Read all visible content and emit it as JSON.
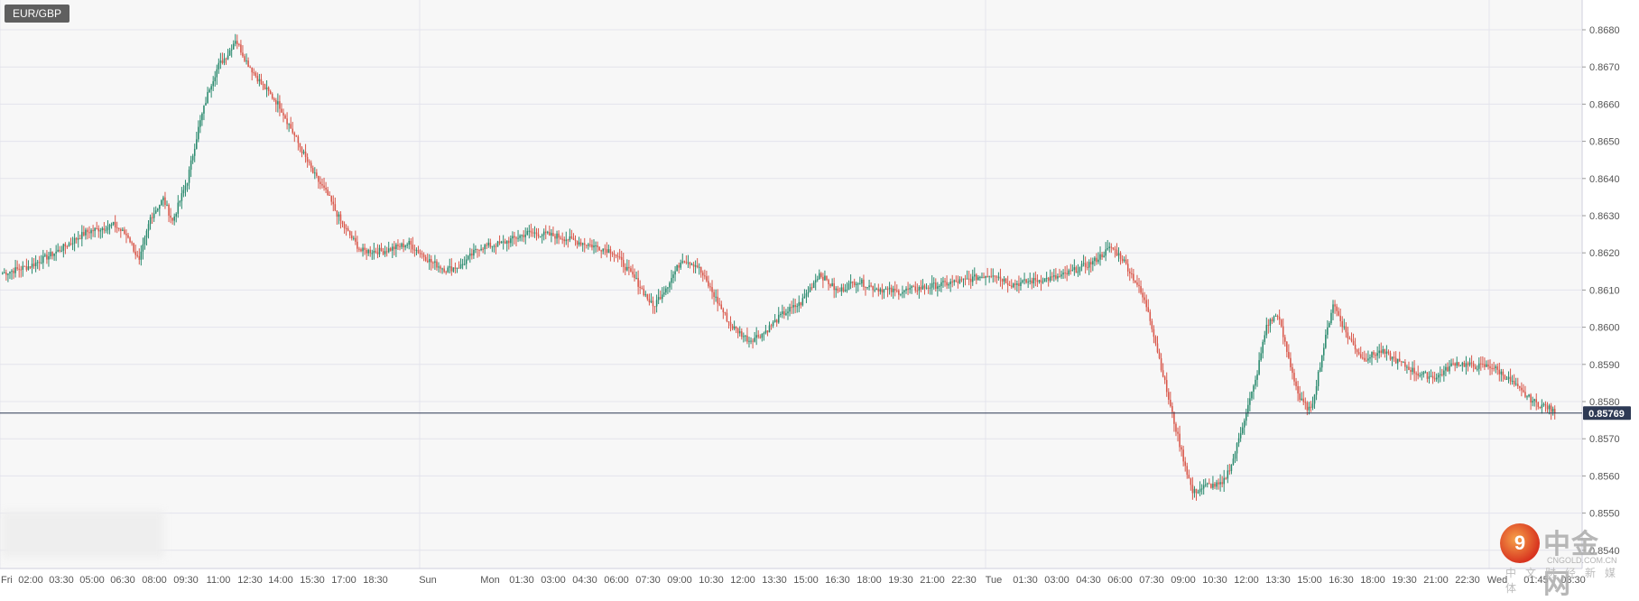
{
  "symbol": "EUR/GBP",
  "colors": {
    "up": "#2a8a6e",
    "down": "#d9574a",
    "grid": "#e4e4ec",
    "price_line": "#2e3a55",
    "badge": "#2e3a55"
  },
  "logo": {
    "mark": "9",
    "name": "中金网",
    "url": "CNGOLD.COM.CN",
    "sub": "中文财经新媒体"
  },
  "chart_data": {
    "type": "candlestick",
    "symbol": "EUR/GBP",
    "current_price": 0.85769,
    "current_price_label": "0.85769",
    "y_ticks": [
      "0.8680",
      "0.8670",
      "0.8660",
      "0.8650",
      "0.8640",
      "0.8630",
      "0.8620",
      "0.8610",
      "0.8600",
      "0.8590",
      "0.8580",
      "0.8570",
      "0.8560",
      "0.8550",
      "0.8540"
    ],
    "ylim": [
      0.8538,
      0.8686
    ],
    "x_labels": [
      "Fri",
      "02:00",
      "03:30",
      "05:00",
      "06:30",
      "08:00",
      "09:30",
      "11:00",
      "12:30",
      "14:00",
      "15:30",
      "17:00",
      "18:30",
      "Sun",
      "Mon",
      "01:30",
      "03:00",
      "04:30",
      "06:00",
      "07:30",
      "09:00",
      "10:30",
      "12:00",
      "13:30",
      "15:00",
      "16:30",
      "18:00",
      "19:30",
      "21:00",
      "22:30",
      "Tue",
      "01:30",
      "03:00",
      "04:30",
      "06:00",
      "07:30",
      "09:00",
      "10:30",
      "12:00",
      "13:30",
      "15:00",
      "16:30",
      "18:00",
      "19:30",
      "21:00",
      "22:30",
      "Wed",
      "01:45",
      "03:30"
    ],
    "anchors": [
      [
        0,
        0.86145
      ],
      [
        15,
        0.86165
      ],
      [
        30,
        0.86205
      ],
      [
        45,
        0.86255
      ],
      [
        60,
        0.86275
      ],
      [
        68,
        0.86245
      ],
      [
        74,
        0.86175
      ],
      [
        80,
        0.86295
      ],
      [
        87,
        0.86345
      ],
      [
        92,
        0.86285
      ],
      [
        100,
        0.86395
      ],
      [
        106,
        0.86535
      ],
      [
        112,
        0.86645
      ],
      [
        117,
        0.86705
      ],
      [
        122,
        0.86735
      ],
      [
        126,
        0.86775
      ],
      [
        132,
        0.86715
      ],
      [
        140,
        0.86655
      ],
      [
        150,
        0.86595
      ],
      [
        160,
        0.86495
      ],
      [
        168,
        0.86415
      ],
      [
        176,
        0.86355
      ],
      [
        184,
        0.86275
      ],
      [
        194,
        0.86205
      ],
      [
        206,
        0.86205
      ],
      [
        220,
        0.86225
      ],
      [
        232,
        0.86175
      ],
      [
        240,
        0.86155
      ],
      [
        248,
        0.86165
      ],
      [
        258,
        0.86215
      ],
      [
        270,
        0.86225
      ],
      [
        285,
        0.86255
      ],
      [
        300,
        0.86245
      ],
      [
        315,
        0.86225
      ],
      [
        330,
        0.86205
      ],
      [
        343,
        0.86125
      ],
      [
        352,
        0.86055
      ],
      [
        360,
        0.86115
      ],
      [
        368,
        0.86185
      ],
      [
        376,
        0.86165
      ],
      [
        384,
        0.86095
      ],
      [
        394,
        0.86005
      ],
      [
        404,
        0.85965
      ],
      [
        412,
        0.85985
      ],
      [
        422,
        0.86035
      ],
      [
        432,
        0.86065
      ],
      [
        442,
        0.86145
      ],
      [
        452,
        0.86095
      ],
      [
        462,
        0.86125
      ],
      [
        472,
        0.86105
      ],
      [
        484,
        0.86095
      ],
      [
        496,
        0.86105
      ],
      [
        508,
        0.86115
      ],
      [
        520,
        0.86125
      ],
      [
        536,
        0.86145
      ],
      [
        546,
        0.86115
      ],
      [
        558,
        0.86125
      ],
      [
        572,
        0.86135
      ],
      [
        590,
        0.86175
      ],
      [
        600,
        0.86215
      ],
      [
        606,
        0.86185
      ],
      [
        614,
        0.86115
      ],
      [
        620,
        0.86045
      ],
      [
        626,
        0.85915
      ],
      [
        632,
        0.85785
      ],
      [
        638,
        0.85665
      ],
      [
        644,
        0.85555
      ],
      [
        652,
        0.85575
      ],
      [
        660,
        0.85575
      ],
      [
        666,
        0.85645
      ],
      [
        672,
        0.85755
      ],
      [
        678,
        0.85855
      ],
      [
        684,
        0.86005
      ],
      [
        690,
        0.86035
      ],
      [
        696,
        0.85915
      ],
      [
        702,
        0.85805
      ],
      [
        708,
        0.85775
      ],
      [
        714,
        0.85925
      ],
      [
        720,
        0.86065
      ],
      [
        728,
        0.85975
      ],
      [
        736,
        0.85915
      ],
      [
        746,
        0.85935
      ],
      [
        756,
        0.85905
      ],
      [
        766,
        0.85875
      ],
      [
        776,
        0.85865
      ],
      [
        786,
        0.85905
      ],
      [
        796,
        0.85895
      ],
      [
        806,
        0.85895
      ],
      [
        814,
        0.85865
      ],
      [
        822,
        0.85825
      ],
      [
        830,
        0.85795
      ],
      [
        836,
        0.85785
      ],
      [
        840,
        0.85769
      ]
    ],
    "candle_count": 841,
    "candle_spacing": "3 min"
  }
}
